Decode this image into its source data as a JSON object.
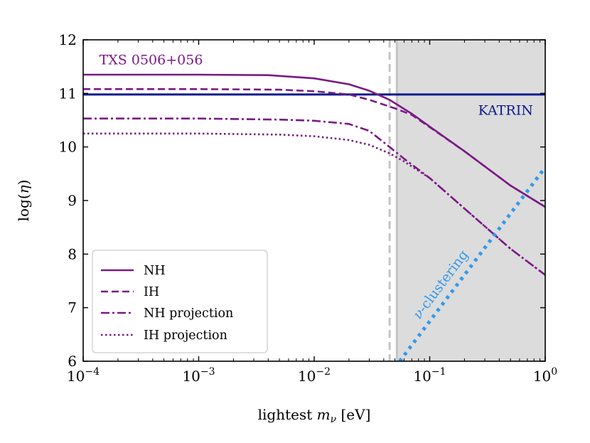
{
  "chart_data": {
    "type": "line",
    "xlabel_prefix": "lightest ",
    "xlabel_var": "m",
    "xlabel_sub": "ν",
    "xlabel_unit": " [eV]",
    "ylabel_prefix": "log(",
    "ylabel_var": "η",
    "ylabel_suffix": ")",
    "xscale": "log",
    "xlim": [
      0.0001,
      1
    ],
    "ylim": [
      6,
      12
    ],
    "x_ticks": [
      {
        "exp": "-4",
        "value": 0.0001
      },
      {
        "exp": "-3",
        "value": 0.001
      },
      {
        "exp": "-2",
        "value": 0.01
      },
      {
        "exp": "-1",
        "value": 0.1
      },
      {
        "exp": "0",
        "value": 1
      }
    ],
    "y_ticks": [
      "6",
      "7",
      "8",
      "9",
      "10",
      "11",
      "12"
    ],
    "shaded_region": {
      "x_start": 0.052,
      "x_end": 1,
      "color": "#dcdcdc"
    },
    "vertical_lines": [
      {
        "x": 0.045,
        "style": "dashed",
        "color": "#c4c4c4"
      },
      {
        "x": 0.052,
        "style": "solid",
        "color": "#c4c4c4"
      }
    ],
    "horizontal_line": {
      "name": "KATRIN",
      "y": 10.98,
      "color": "#0d1b8c"
    },
    "series": [
      {
        "name": "NH",
        "style": "solid",
        "color": "#7b1a86",
        "points": [
          [
            0.0001,
            11.35
          ],
          [
            0.001,
            11.35
          ],
          [
            0.004,
            11.34
          ],
          [
            0.01,
            11.28
          ],
          [
            0.02,
            11.17
          ],
          [
            0.03,
            11.05
          ],
          [
            0.045,
            10.88
          ],
          [
            0.07,
            10.62
          ],
          [
            0.1,
            10.38
          ],
          [
            0.2,
            9.92
          ],
          [
            0.5,
            9.28
          ],
          [
            1,
            8.88
          ]
        ]
      },
      {
        "name": "IH",
        "style": "dashed",
        "color": "#7b1a86",
        "points": [
          [
            0.0001,
            11.08
          ],
          [
            0.001,
            11.08
          ],
          [
            0.005,
            11.07
          ],
          [
            0.01,
            11.04
          ],
          [
            0.02,
            10.98
          ],
          [
            0.03,
            10.88
          ],
          [
            0.05,
            10.72
          ],
          [
            0.07,
            10.6
          ],
          [
            0.1,
            10.37
          ],
          [
            0.2,
            9.92
          ],
          [
            0.5,
            9.28
          ],
          [
            1,
            8.88
          ]
        ]
      },
      {
        "name": "NH projection",
        "style": "dashdot",
        "color": "#7b1a86",
        "points": [
          [
            0.0001,
            10.53
          ],
          [
            0.001,
            10.53
          ],
          [
            0.005,
            10.51
          ],
          [
            0.01,
            10.49
          ],
          [
            0.02,
            10.43
          ],
          [
            0.03,
            10.3
          ],
          [
            0.045,
            10.0
          ],
          [
            0.06,
            9.78
          ],
          [
            0.1,
            9.42
          ],
          [
            0.2,
            8.85
          ],
          [
            0.5,
            8.1
          ],
          [
            1,
            7.61
          ]
        ]
      },
      {
        "name": "IH projection",
        "style": "dotted",
        "color": "#7b1a86",
        "points": [
          [
            0.0001,
            10.25
          ],
          [
            0.001,
            10.25
          ],
          [
            0.005,
            10.23
          ],
          [
            0.01,
            10.2
          ],
          [
            0.02,
            10.13
          ],
          [
            0.03,
            10.04
          ],
          [
            0.045,
            9.88
          ],
          [
            0.06,
            9.73
          ],
          [
            0.1,
            9.42
          ],
          [
            0.2,
            8.85
          ],
          [
            0.5,
            8.1
          ],
          [
            1,
            7.61
          ]
        ]
      },
      {
        "name": "ν-clustering",
        "style": "dotted-thick",
        "color": "#3399ee",
        "points": [
          [
            0.055,
            6.0
          ],
          [
            1,
            9.62
          ]
        ]
      }
    ],
    "annotations": [
      {
        "text": "TXS 0506+056",
        "color": "#7b1a86",
        "x": 0.00015,
        "y": 11.62
      },
      {
        "text": "KATRIN",
        "color": "#0d1b8c",
        "x": 0.7,
        "y": 10.68
      }
    ],
    "rotated_annotation": {
      "prefix": "ν",
      "text": "-clustering",
      "color": "#3399ee"
    },
    "legend": {
      "placement": "lower left",
      "entries": [
        "NH",
        "IH",
        "NH projection",
        "IH projection"
      ]
    }
  }
}
